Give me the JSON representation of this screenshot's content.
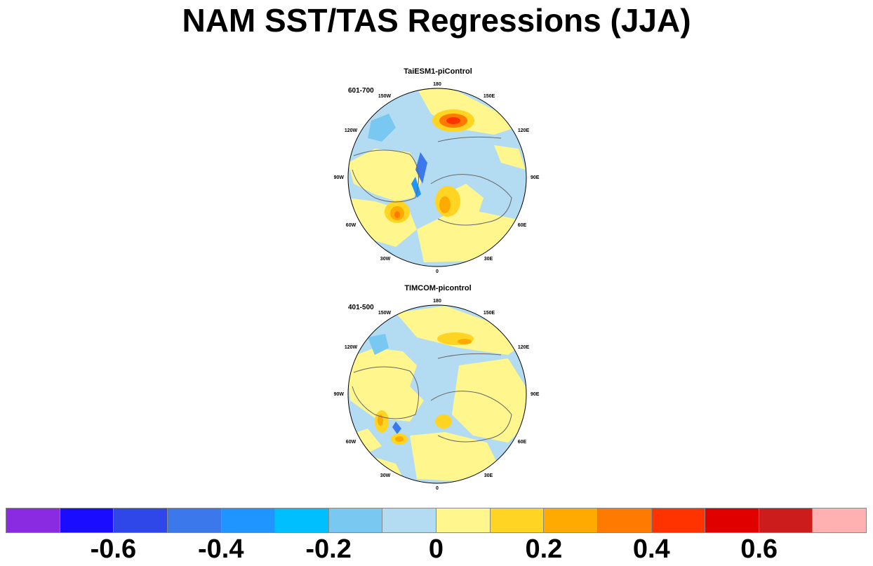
{
  "title": "NAM SST/TAS Regressions (JJA)",
  "panels": [
    {
      "title": "TaiESM1-piControl",
      "period": "601-700",
      "lon_labels": [
        "180",
        "150E",
        "120E",
        "90E",
        "60E",
        "30E",
        "0",
        "30W",
        "60W",
        "90W",
        "120W",
        "150W"
      ]
    },
    {
      "title": "TIMCOM-picontrol",
      "period": "401-500",
      "lon_labels": [
        "180",
        "150E",
        "120E",
        "90E",
        "60E",
        "30E",
        "0",
        "30W",
        "60W",
        "90W",
        "120W",
        "150W"
      ]
    }
  ],
  "colorbar": {
    "colors": [
      "#8a2be2",
      "#1a0dff",
      "#2f46e8",
      "#3a78ec",
      "#1f96ff",
      "#00bfff",
      "#78c8f2",
      "#b3dcf2",
      "#fff68e",
      "#ffd423",
      "#ffaa00",
      "#ff7a00",
      "#ff3300",
      "#e00000",
      "#cc1c1c",
      "#ffb0b0"
    ],
    "labels": [
      "-0.6",
      "-0.4",
      "-0.2",
      "0",
      "0.2",
      "0.4",
      "0.6"
    ]
  }
}
